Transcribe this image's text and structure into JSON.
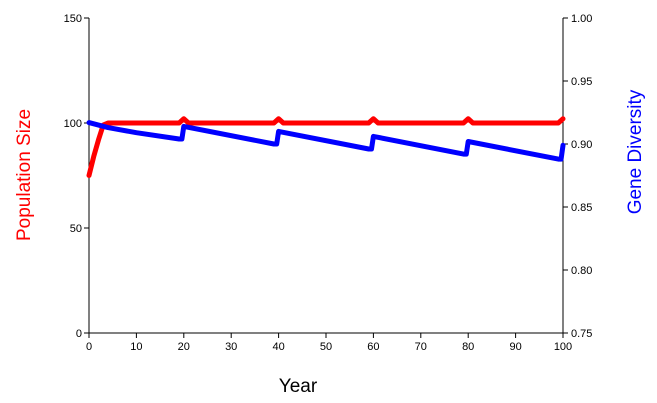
{
  "chart_data": {
    "type": "line",
    "xlabel": "Year",
    "ylabel_left": "Population Size",
    "ylabel_right": "Gene Diversity",
    "colors": {
      "population": "#ff0000",
      "diversity": "#0000ff",
      "axes": "#000000"
    },
    "x_axis": {
      "lim": [
        0,
        100
      ],
      "ticks": [
        0,
        10,
        20,
        30,
        40,
        50,
        60,
        70,
        80,
        90,
        100
      ],
      "tick_labels": [
        "0",
        "10",
        "20",
        "30",
        "40",
        "50",
        "60",
        "70",
        "80",
        "90",
        "100"
      ]
    },
    "y_left_axis": {
      "lim": [
        0,
        150
      ],
      "ticks": [
        0,
        50,
        100,
        150
      ],
      "tick_labels": [
        "0",
        "50",
        "100",
        "150"
      ]
    },
    "y_right_axis": {
      "lim": [
        0.75,
        1.0
      ],
      "ticks": [
        0.75,
        0.8,
        0.85,
        0.9,
        0.95,
        1.0
      ],
      "tick_labels": [
        "0.75",
        "0.80",
        "0.85",
        "0.90",
        "0.95",
        "1.00"
      ]
    },
    "series": [
      {
        "axis": "left",
        "color": "#ff0000",
        "x": [
          0,
          1,
          2,
          3,
          4,
          5,
          19,
          20,
          21,
          39,
          40,
          41,
          59,
          60,
          61,
          79,
          80,
          81,
          99,
          100
        ],
        "values": [
          75,
          84,
          92,
          99,
          100,
          100,
          100,
          102,
          100,
          100,
          102,
          100,
          100,
          102,
          100,
          100,
          102,
          100,
          100,
          102
        ]
      },
      {
        "axis": "right",
        "color": "#0000ff",
        "x": [
          0,
          2,
          4,
          10,
          19,
          19.6,
          20,
          39,
          39.6,
          40,
          59,
          59.6,
          60,
          79,
          79.6,
          80,
          99,
          99.6,
          100
        ],
        "values": [
          0.917,
          0.915,
          0.913,
          0.909,
          0.904,
          0.904,
          0.914,
          0.9,
          0.9,
          0.91,
          0.896,
          0.896,
          0.906,
          0.892,
          0.892,
          0.902,
          0.888,
          0.888,
          0.899
        ]
      }
    ]
  }
}
